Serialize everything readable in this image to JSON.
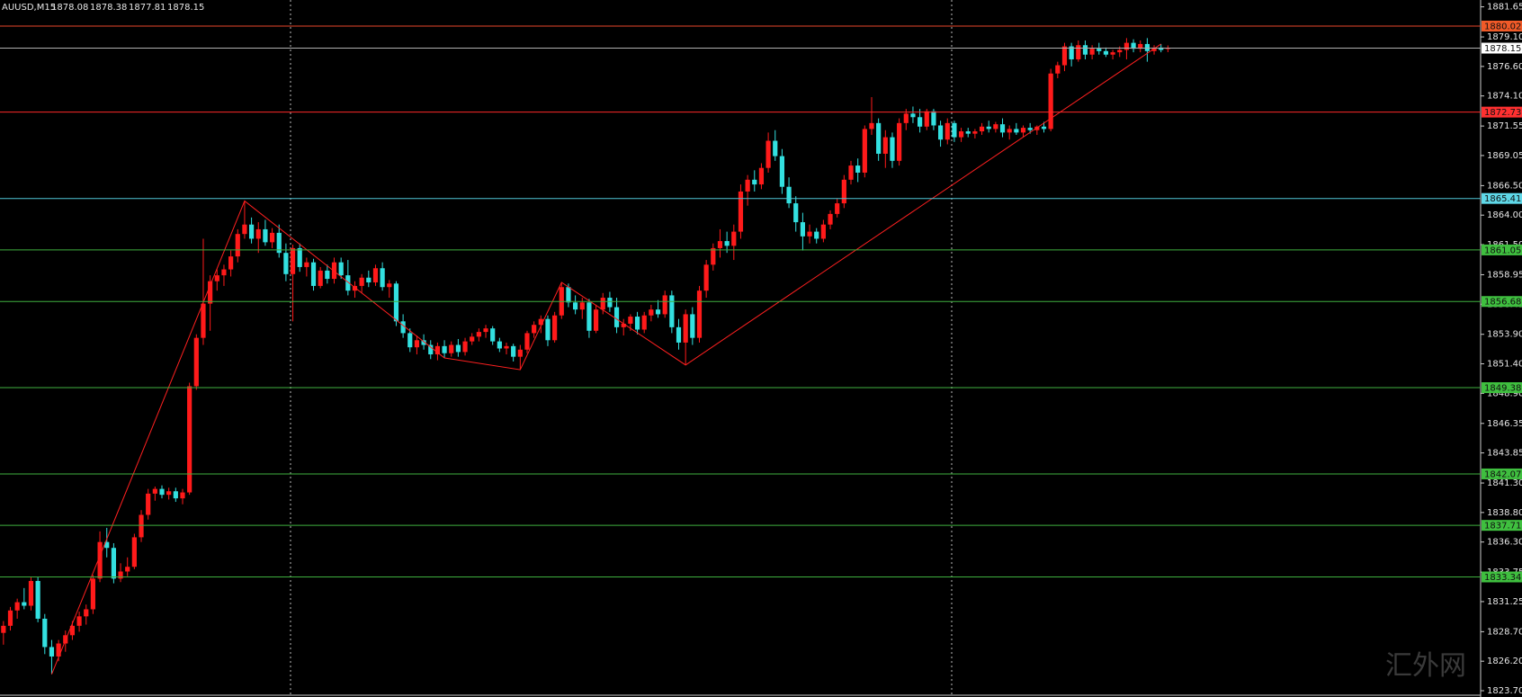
{
  "chart_data": {
    "type": "candlestick",
    "symbol": "AUUSD,M15",
    "watermark": "汇外网",
    "up_color": "#ff1a1a",
    "down_color": "#33e0e0",
    "ylim": [
      1823.7,
      1881.65
    ],
    "yticks": [
      1881.65,
      {
        "value": 1879.1,
        "label": "1879.10"
      },
      {
        "value": 1876.6,
        "label": "1876.60"
      },
      {
        "value": 1874.1,
        "label": "1874.10"
      },
      1871.55,
      1869.05,
      {
        "value": 1866.5,
        "label": "1866.50"
      },
      {
        "value": 1864,
        "label": "1864.00"
      },
      {
        "value": 1861.5,
        "label": "1861.50"
      },
      1858.95,
      1856.45,
      {
        "value": 1853.9,
        "label": "1853.90"
      },
      {
        "value": 1851.4,
        "label": "1851.40"
      },
      {
        "value": 1848.9,
        "label": "1848.90"
      },
      1846.35,
      1843.85,
      {
        "value": 1841.3,
        "label": "1841.30"
      },
      {
        "value": 1838.8,
        "label": "1838.80"
      },
      {
        "value": 1836.3,
        "label": "1836.30"
      },
      1833.75,
      1831.25,
      {
        "value": 1828.7,
        "label": "1828.70"
      },
      {
        "value": 1826.2,
        "label": "1826.20"
      },
      {
        "value": 1823.7,
        "label": "1823.70"
      }
    ],
    "levels": [
      {
        "value": 1880.02,
        "color": "#e8462a",
        "bg": "#f05a28"
      },
      {
        "value": 1878.15,
        "color": "#b0b0b0",
        "bg": "#ffffff"
      },
      {
        "value": 1872.73,
        "color": "#ff2a2a",
        "bg": "#ff3030"
      },
      {
        "value": 1865.41,
        "color": "#4fc6d6",
        "bg": "#5fd8e8"
      },
      {
        "value": 1861.05,
        "color": "#3faf3f",
        "bg": "#3fbf3f"
      },
      {
        "value": 1856.68,
        "color": "#3faf3f",
        "bg": "#3fbf3f"
      },
      {
        "value": 1849.38,
        "color": "#3faf3f",
        "bg": "#3fbf3f"
      },
      {
        "value": 1842.07,
        "color": "#3faf3f",
        "bg": "#3fbf3f"
      },
      {
        "value": 1837.71,
        "color": "#3faf3f",
        "bg": "#3fbf3f"
      },
      {
        "value": 1833.34,
        "color": "#3faf3f",
        "bg": "#3fbf3f"
      }
    ],
    "zigzag": {
      "color": "#ff2020",
      "x": [
        7,
        35,
        64,
        75,
        81,
        99,
        168
      ],
      "values": [
        1825.1,
        1865.2,
        1851.9,
        1850.9,
        1858.3,
        1851.3,
        1878.5
      ]
    },
    "candles": [
      [
        1828.6,
        1829.6,
        1827.6,
        1829.2
      ],
      [
        1829.2,
        1830.8,
        1828.8,
        1830.5
      ],
      [
        1830.5,
        1831.5,
        1829.8,
        1831.2
      ],
      [
        1831.2,
        1832.4,
        1830.6,
        1830.9
      ],
      [
        1830.9,
        1833.3,
        1830.5,
        1833.0
      ],
      [
        1833.0,
        1833.3,
        1829.5,
        1829.8
      ],
      [
        1829.8,
        1830.2,
        1826.8,
        1827.4
      ],
      [
        1827.4,
        1828.0,
        1825.1,
        1826.6
      ],
      [
        1826.6,
        1828.0,
        1826.2,
        1827.7
      ],
      [
        1827.7,
        1828.8,
        1827.0,
        1828.4
      ],
      [
        1828.4,
        1829.6,
        1828.0,
        1829.2
      ],
      [
        1829.2,
        1830.4,
        1828.7,
        1830.0
      ],
      [
        1830.0,
        1831.0,
        1829.3,
        1830.6
      ],
      [
        1830.6,
        1833.5,
        1830.2,
        1833.2
      ],
      [
        1833.2,
        1837.2,
        1832.9,
        1836.3
      ],
      [
        1836.3,
        1837.5,
        1835.0,
        1835.8
      ],
      [
        1835.8,
        1836.2,
        1832.8,
        1833.2
      ],
      [
        1833.2,
        1834.5,
        1832.9,
        1833.8
      ],
      [
        1833.8,
        1835.0,
        1833.4,
        1834.2
      ],
      [
        1834.2,
        1837.0,
        1834.0,
        1836.7
      ],
      [
        1836.7,
        1839.0,
        1836.3,
        1838.6
      ],
      [
        1838.6,
        1840.8,
        1838.2,
        1840.4
      ],
      [
        1840.4,
        1841.0,
        1839.8,
        1840.8
      ],
      [
        1840.8,
        1841.1,
        1840.0,
        1840.3
      ],
      [
        1840.3,
        1840.9,
        1839.9,
        1840.6
      ],
      [
        1840.6,
        1840.9,
        1839.7,
        1840.0
      ],
      [
        1840.0,
        1840.8,
        1839.5,
        1840.5
      ],
      [
        1840.5,
        1849.8,
        1840.3,
        1849.5
      ],
      [
        1849.5,
        1853.9,
        1849.2,
        1853.6
      ],
      [
        1853.6,
        1862.0,
        1853.0,
        1856.5
      ],
      [
        1856.5,
        1858.9,
        1854.2,
        1858.4
      ],
      [
        1858.4,
        1859.4,
        1857.6,
        1858.9
      ],
      [
        1858.9,
        1859.8,
        1858.0,
        1859.4
      ],
      [
        1859.4,
        1861.0,
        1858.8,
        1860.5
      ],
      [
        1860.5,
        1862.8,
        1860.0,
        1862.4
      ],
      [
        1862.4,
        1865.2,
        1862.0,
        1863.2
      ],
      [
        1863.2,
        1863.8,
        1861.6,
        1862.0
      ],
      [
        1862.0,
        1863.4,
        1860.8,
        1862.8
      ],
      [
        1862.8,
        1863.6,
        1861.4,
        1861.7
      ],
      [
        1861.7,
        1862.9,
        1861.2,
        1862.5
      ],
      [
        1862.5,
        1863.2,
        1860.4,
        1860.8
      ],
      [
        1860.8,
        1861.6,
        1858.4,
        1859.0
      ],
      [
        1859.0,
        1861.5,
        1855.0,
        1861.2
      ],
      [
        1861.2,
        1861.6,
        1859.2,
        1859.6
      ],
      [
        1859.6,
        1860.4,
        1858.8,
        1860.0
      ],
      [
        1860.0,
        1860.3,
        1857.6,
        1858.0
      ],
      [
        1858.0,
        1859.6,
        1857.8,
        1859.3
      ],
      [
        1859.3,
        1859.8,
        1858.2,
        1858.6
      ],
      [
        1858.6,
        1860.4,
        1858.2,
        1860.0
      ],
      [
        1860.0,
        1860.4,
        1858.6,
        1858.9
      ],
      [
        1858.9,
        1860.2,
        1857.2,
        1857.6
      ],
      [
        1857.6,
        1858.4,
        1857.0,
        1858.0
      ],
      [
        1858.0,
        1859.0,
        1857.4,
        1858.7
      ],
      [
        1858.7,
        1859.3,
        1857.9,
        1858.3
      ],
      [
        1858.3,
        1859.8,
        1858.0,
        1859.5
      ],
      [
        1859.5,
        1860.0,
        1857.6,
        1857.9
      ],
      [
        1857.9,
        1858.5,
        1857.0,
        1858.2
      ],
      [
        1858.2,
        1858.4,
        1854.6,
        1855.0
      ],
      [
        1855.0,
        1855.6,
        1853.6,
        1854.0
      ],
      [
        1854.0,
        1854.4,
        1852.4,
        1852.8
      ],
      [
        1852.8,
        1853.8,
        1852.2,
        1853.4
      ],
      [
        1853.4,
        1853.9,
        1852.6,
        1853.0
      ],
      [
        1853.0,
        1853.4,
        1851.8,
        1852.2
      ],
      [
        1852.2,
        1853.2,
        1851.7,
        1852.9
      ],
      [
        1852.9,
        1853.4,
        1851.9,
        1852.3
      ],
      [
        1852.3,
        1853.3,
        1852.0,
        1853.0
      ],
      [
        1853.0,
        1853.5,
        1852.0,
        1852.4
      ],
      [
        1852.4,
        1853.6,
        1852.1,
        1853.3
      ],
      [
        1853.3,
        1854.0,
        1853.0,
        1853.7
      ],
      [
        1853.7,
        1854.4,
        1853.3,
        1854.1
      ],
      [
        1854.1,
        1854.7,
        1853.6,
        1854.4
      ],
      [
        1854.4,
        1854.6,
        1853.0,
        1853.3
      ],
      [
        1853.3,
        1853.6,
        1852.4,
        1852.7
      ],
      [
        1852.7,
        1853.2,
        1852.2,
        1852.9
      ],
      [
        1852.9,
        1853.1,
        1851.6,
        1852.0
      ],
      [
        1852.0,
        1853.0,
        1850.9,
        1852.6
      ],
      [
        1852.6,
        1854.2,
        1852.3,
        1854.0
      ],
      [
        1854.0,
        1855.0,
        1853.6,
        1854.7
      ],
      [
        1854.7,
        1855.5,
        1854.0,
        1855.2
      ],
      [
        1855.2,
        1855.5,
        1852.9,
        1853.4
      ],
      [
        1853.4,
        1855.8,
        1853.2,
        1855.5
      ],
      [
        1855.5,
        1858.3,
        1855.2,
        1857.9
      ],
      [
        1857.9,
        1858.2,
        1856.2,
        1856.6
      ],
      [
        1856.6,
        1857.2,
        1855.6,
        1856.0
      ],
      [
        1856.0,
        1857.0,
        1855.2,
        1856.6
      ],
      [
        1856.6,
        1856.9,
        1853.6,
        1854.2
      ],
      [
        1854.2,
        1856.4,
        1854.0,
        1856.0
      ],
      [
        1856.0,
        1857.4,
        1855.6,
        1857.0
      ],
      [
        1857.0,
        1857.5,
        1855.8,
        1856.2
      ],
      [
        1856.2,
        1857.0,
        1854.0,
        1854.5
      ],
      [
        1854.5,
        1855.2,
        1853.8,
        1854.8
      ],
      [
        1854.8,
        1855.6,
        1854.2,
        1855.4
      ],
      [
        1855.4,
        1855.8,
        1853.9,
        1854.3
      ],
      [
        1854.3,
        1855.8,
        1854.0,
        1855.5
      ],
      [
        1855.5,
        1856.4,
        1855.0,
        1856.0
      ],
      [
        1856.0,
        1856.8,
        1855.3,
        1855.6
      ],
      [
        1855.6,
        1857.6,
        1855.3,
        1857.2
      ],
      [
        1857.2,
        1857.6,
        1854.0,
        1854.5
      ],
      [
        1854.5,
        1855.2,
        1852.6,
        1853.2
      ],
      [
        1853.2,
        1856.0,
        1851.3,
        1855.6
      ],
      [
        1855.6,
        1856.2,
        1853.0,
        1853.6
      ],
      [
        1853.6,
        1858.0,
        1853.2,
        1857.6
      ],
      [
        1857.6,
        1860.2,
        1857.0,
        1859.8
      ],
      [
        1859.8,
        1861.6,
        1859.3,
        1861.2
      ],
      [
        1861.2,
        1862.8,
        1860.4,
        1861.8
      ],
      [
        1861.8,
        1862.6,
        1860.8,
        1861.4
      ],
      [
        1861.4,
        1863.2,
        1860.2,
        1862.6
      ],
      [
        1862.6,
        1866.6,
        1862.0,
        1866.0
      ],
      [
        1866.0,
        1867.4,
        1864.8,
        1867.0
      ],
      [
        1867.0,
        1867.8,
        1866.0,
        1866.6
      ],
      [
        1866.6,
        1868.4,
        1866.2,
        1868.0
      ],
      [
        1868.0,
        1871.0,
        1867.6,
        1870.3
      ],
      [
        1870.3,
        1871.2,
        1868.6,
        1869.0
      ],
      [
        1869.0,
        1869.6,
        1865.8,
        1866.4
      ],
      [
        1866.4,
        1867.2,
        1864.6,
        1865.0
      ],
      [
        1865.0,
        1865.6,
        1862.6,
        1863.4
      ],
      [
        1863.4,
        1864.2,
        1861.0,
        1862.2
      ],
      [
        1862.2,
        1863.2,
        1861.6,
        1862.6
      ],
      [
        1862.6,
        1862.9,
        1861.6,
        1862.0
      ],
      [
        1862.0,
        1863.6,
        1861.7,
        1863.2
      ],
      [
        1863.2,
        1864.4,
        1862.8,
        1864.1
      ],
      [
        1864.1,
        1865.4,
        1863.8,
        1865.0
      ],
      [
        1865.0,
        1867.4,
        1864.6,
        1867.0
      ],
      [
        1867.0,
        1868.6,
        1866.6,
        1868.2
      ],
      [
        1868.2,
        1868.8,
        1866.8,
        1867.6
      ],
      [
        1867.6,
        1871.6,
        1867.2,
        1871.3
      ],
      [
        1871.3,
        1874.0,
        1870.8,
        1871.8
      ],
      [
        1871.8,
        1872.2,
        1868.6,
        1869.2
      ],
      [
        1869.2,
        1871.2,
        1868.0,
        1870.6
      ],
      [
        1870.6,
        1871.0,
        1868.0,
        1868.6
      ],
      [
        1868.6,
        1872.2,
        1868.2,
        1871.8
      ],
      [
        1871.8,
        1873.0,
        1871.2,
        1872.6
      ],
      [
        1872.6,
        1873.2,
        1871.8,
        1872.3
      ],
      [
        1872.3,
        1873.0,
        1871.0,
        1871.5
      ],
      [
        1871.5,
        1873.0,
        1871.2,
        1872.8
      ],
      [
        1872.8,
        1873.0,
        1871.2,
        1871.6
      ],
      [
        1871.6,
        1872.0,
        1869.8,
        1870.4
      ],
      [
        1870.4,
        1872.2,
        1870.0,
        1871.8
      ],
      [
        1871.8,
        1872.0,
        1870.2,
        1870.6
      ],
      [
        1870.6,
        1871.4,
        1870.2,
        1871.1
      ],
      [
        1871.1,
        1871.4,
        1870.6,
        1870.9
      ],
      [
        1870.9,
        1871.3,
        1870.5,
        1871.1
      ],
      [
        1871.1,
        1871.8,
        1870.8,
        1871.5
      ],
      [
        1871.5,
        1872.0,
        1871.0,
        1871.3
      ],
      [
        1871.3,
        1871.9,
        1871.0,
        1871.7
      ],
      [
        1871.7,
        1872.2,
        1870.6,
        1871.0
      ],
      [
        1871.0,
        1871.6,
        1870.4,
        1871.3
      ],
      [
        1871.3,
        1871.8,
        1870.8,
        1871.0
      ],
      [
        1871.0,
        1871.6,
        1870.6,
        1871.4
      ],
      [
        1871.4,
        1871.8,
        1870.9,
        1871.2
      ],
      [
        1871.2,
        1871.6,
        1870.8,
        1871.5
      ],
      [
        1871.5,
        1871.9,
        1871.0,
        1871.3
      ],
      [
        1871.3,
        1876.4,
        1871.1,
        1876.0
      ],
      [
        1876.0,
        1877.0,
        1875.6,
        1876.7
      ],
      [
        1876.7,
        1878.6,
        1876.2,
        1878.3
      ],
      [
        1878.3,
        1878.6,
        1876.6,
        1877.2
      ],
      [
        1877.2,
        1878.8,
        1877.0,
        1878.4
      ],
      [
        1878.4,
        1878.8,
        1877.2,
        1877.6
      ],
      [
        1877.6,
        1878.4,
        1877.2,
        1878.1
      ],
      [
        1878.1,
        1878.6,
        1877.6,
        1877.9
      ],
      [
        1877.9,
        1878.2,
        1877.4,
        1877.6
      ],
      [
        1877.6,
        1878.0,
        1877.2,
        1877.8
      ],
      [
        1877.8,
        1878.3,
        1877.4,
        1878.0
      ],
      [
        1878.0,
        1879.0,
        1877.2,
        1878.6
      ],
      [
        1878.6,
        1878.9,
        1877.8,
        1878.1
      ],
      [
        1878.1,
        1878.8,
        1877.8,
        1878.5
      ],
      [
        1878.5,
        1879.0,
        1877.0,
        1877.9
      ],
      [
        1877.9,
        1878.4,
        1877.6,
        1878.2
      ],
      [
        1878.2,
        1878.5,
        1877.8,
        1878.0
      ],
      [
        1878.08,
        1878.38,
        1877.81,
        1878.15
      ]
    ]
  }
}
